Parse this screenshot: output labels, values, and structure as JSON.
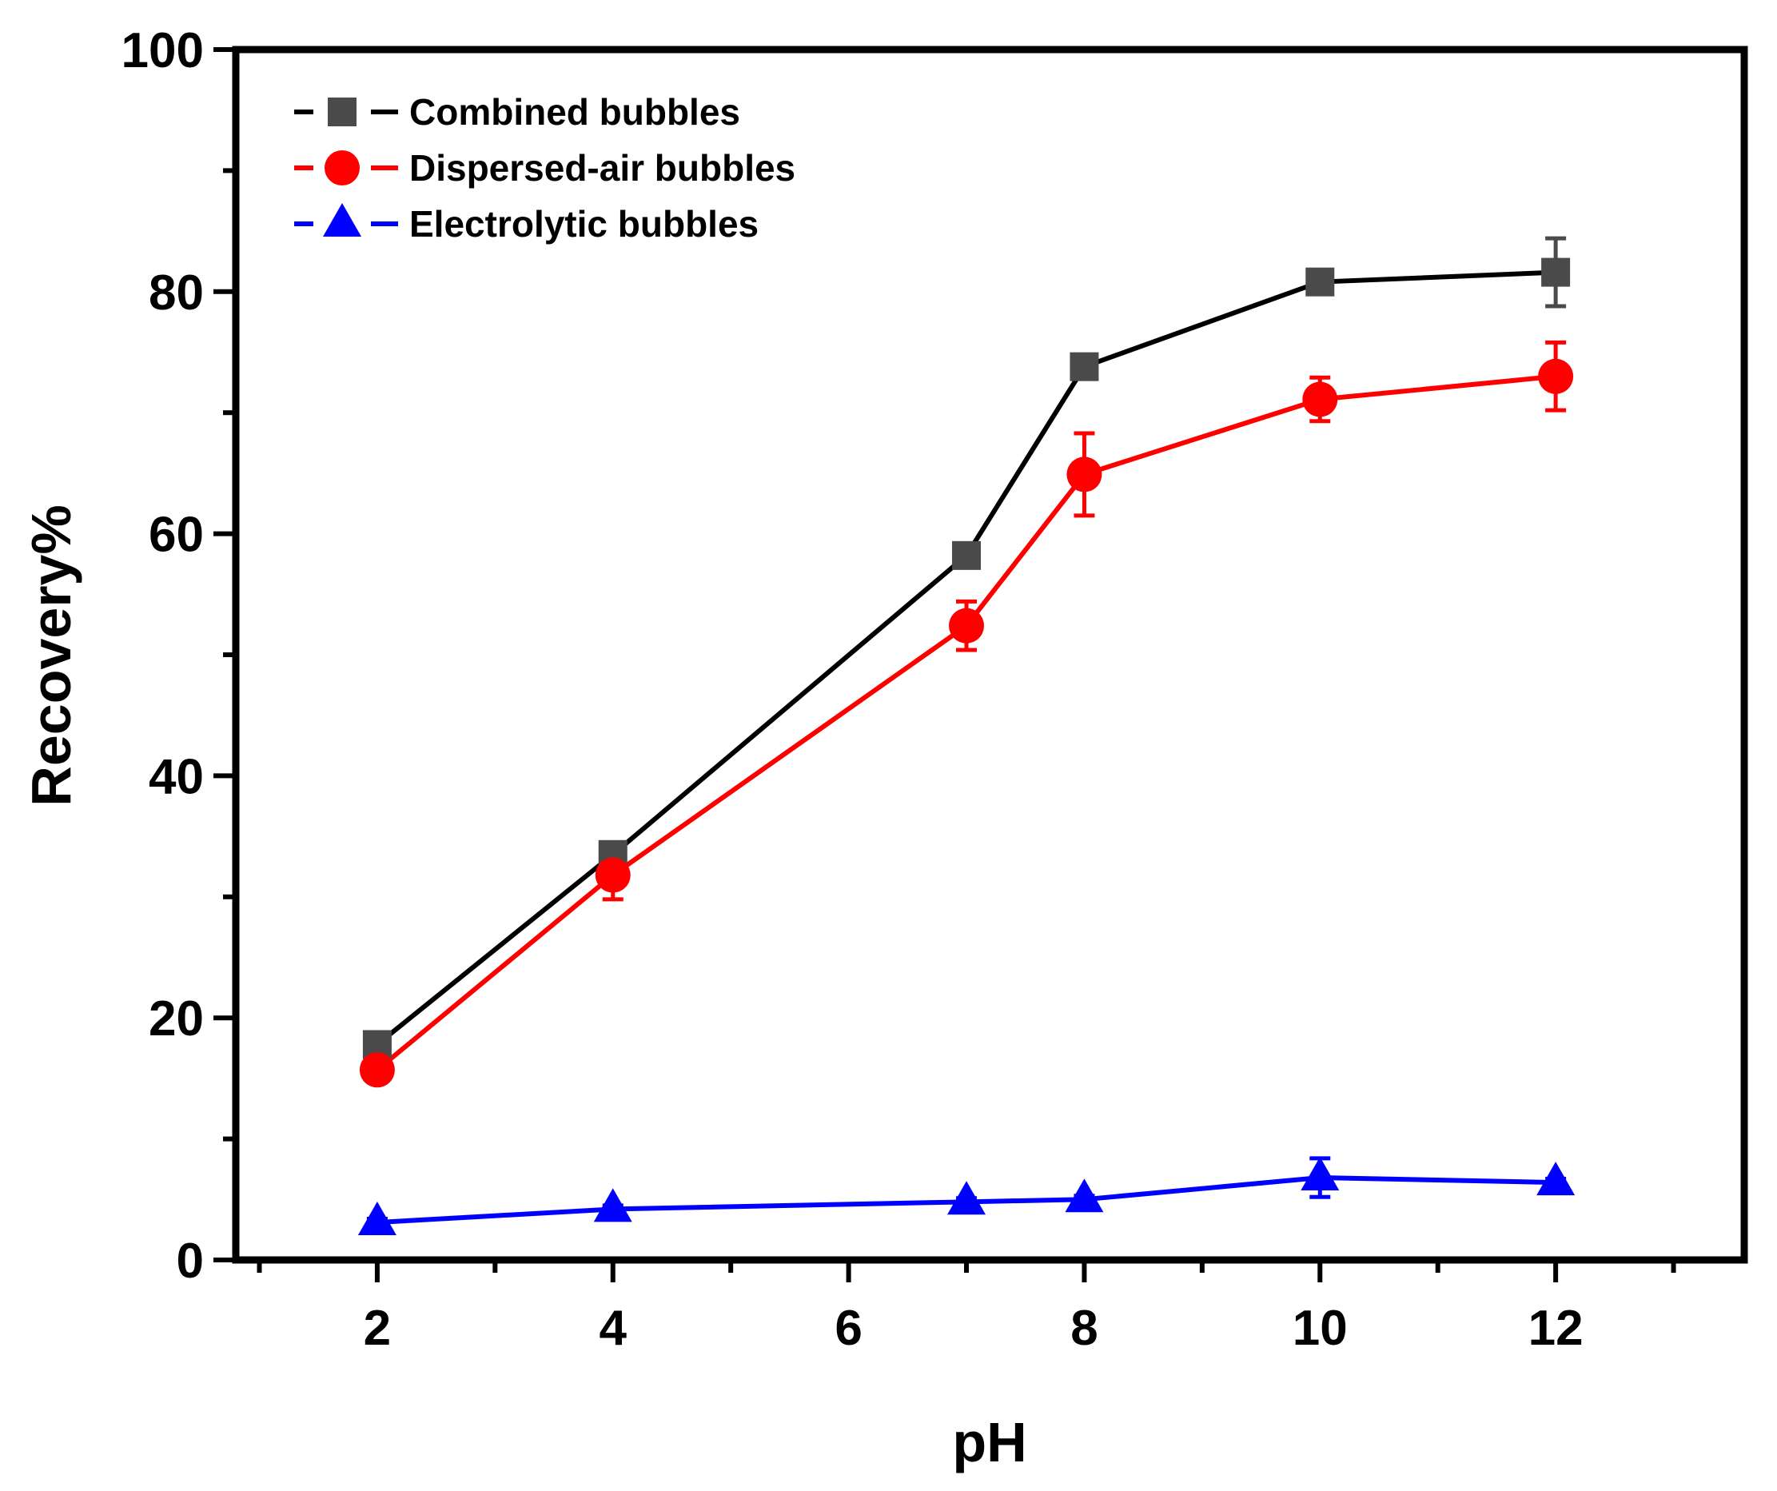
{
  "chart_data": {
    "type": "line",
    "title": "",
    "xlabel": "pH",
    "ylabel": "Recovery%",
    "xlim": [
      0.8,
      13.6
    ],
    "ylim": [
      0,
      100
    ],
    "x_ticks": [
      2,
      4,
      6,
      8,
      10,
      12
    ],
    "y_ticks": [
      0,
      20,
      40,
      60,
      80,
      100
    ],
    "x_tick_labels": [
      "2",
      "4",
      "6",
      "8",
      "10",
      "12"
    ],
    "y_tick_labels": [
      "0",
      "20",
      "40",
      "60",
      "80",
      "100"
    ],
    "grid": false,
    "legend_position": "top-left",
    "series": [
      {
        "name": "Combined bubbles",
        "color": "#4a4a4a",
        "line_color": "#000000",
        "marker": "square",
        "x": [
          2,
          4,
          7,
          8,
          10,
          12
        ],
        "values": [
          17.8,
          33.5,
          58.2,
          73.8,
          80.8,
          81.6
        ],
        "errors": [
          0.8,
          0.9,
          0.8,
          0.4,
          0.6,
          2.8
        ]
      },
      {
        "name": "Dispersed-air bubbles",
        "color": "#ff0000",
        "line_color": "#ff0000",
        "marker": "circle",
        "x": [
          2,
          4,
          7,
          8,
          10,
          12
        ],
        "values": [
          15.7,
          31.8,
          52.4,
          64.9,
          71.1,
          73.0
        ],
        "errors": [
          0.5,
          2.0,
          2.0,
          3.4,
          1.8,
          2.8
        ]
      },
      {
        "name": "Electrolytic bubbles",
        "color": "#0000ff",
        "line_color": "#0000ff",
        "marker": "triangle",
        "x": [
          2,
          4,
          7,
          8,
          10,
          12
        ],
        "values": [
          3.1,
          4.2,
          4.8,
          5.0,
          6.8,
          6.4
        ],
        "errors": [
          0.3,
          0.3,
          0.3,
          0.3,
          1.6,
          0.3
        ]
      }
    ]
  }
}
